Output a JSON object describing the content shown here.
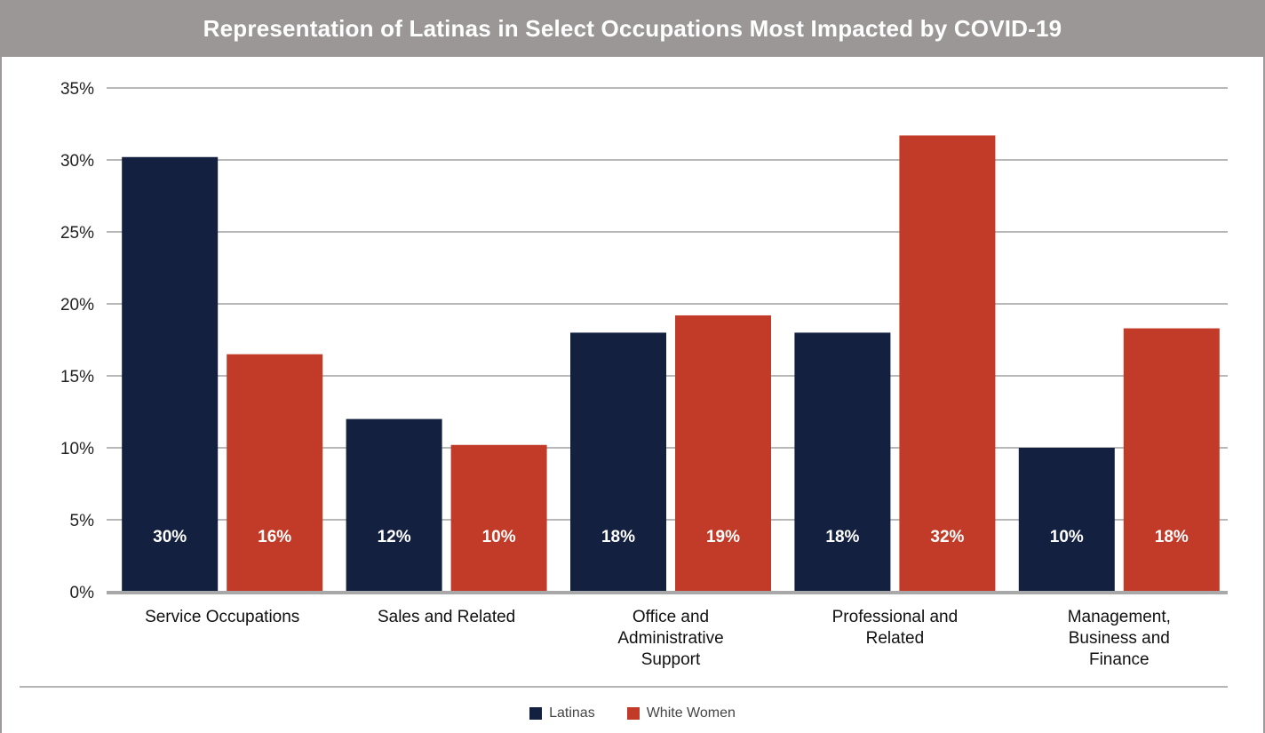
{
  "chart_data": {
    "type": "bar",
    "title": "Representation of Latinas in Select Occupations Most Impacted by COVID-19",
    "categories": [
      [
        "Service Occupations"
      ],
      [
        "Sales and Related"
      ],
      [
        "Office and",
        "Administrative",
        "Support"
      ],
      [
        "Professional and",
        "Related"
      ],
      [
        "Management,",
        "Business and",
        "Finance"
      ]
    ],
    "series": [
      {
        "name": "Latinas",
        "color": "#13203f",
        "values": [
          30.2,
          12.0,
          18.0,
          18.0,
          10.0
        ],
        "labels": [
          "30%",
          "12%",
          "18%",
          "18%",
          "10%"
        ]
      },
      {
        "name": "White Women",
        "color": "#c23b28",
        "values": [
          16.5,
          10.2,
          19.2,
          31.7,
          18.3
        ],
        "labels": [
          "16%",
          "10%",
          "19%",
          "32%",
          "18%"
        ]
      }
    ],
    "yticks": [
      {
        "value": 0,
        "label": "0%"
      },
      {
        "value": 5,
        "label": "5%"
      },
      {
        "value": 10,
        "label": "10%"
      },
      {
        "value": 15,
        "label": "15%"
      },
      {
        "value": 20,
        "label": "20%"
      },
      {
        "value": 25,
        "label": "25%"
      },
      {
        "value": 30,
        "label": "30%"
      },
      {
        "value": 35,
        "label": "35%"
      }
    ],
    "ylim": [
      0,
      35
    ],
    "grid": true,
    "legend_position": "bottom"
  }
}
